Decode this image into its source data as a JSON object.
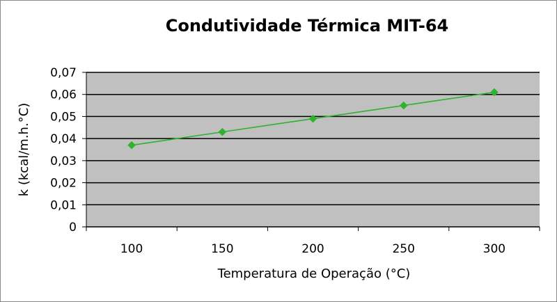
{
  "chart_data": {
    "type": "line",
    "title": "Condutividade Térmica MIT-64",
    "xlabel": "Temperatura de Operação (°C)",
    "ylabel": "k (kcal/m.h.°C)",
    "categories": [
      "100",
      "150",
      "200",
      "250",
      "300"
    ],
    "series": [
      {
        "values": [
          0.037,
          0.043,
          0.049,
          0.055,
          0.061
        ]
      }
    ],
    "ylim": [
      0,
      0.07
    ],
    "yticks": [
      0,
      0.01,
      0.02,
      0.03,
      0.04,
      0.05,
      0.06,
      0.07
    ],
    "ytick_labels": [
      "0",
      "0,01",
      "0,02",
      "0,03",
      "0,04",
      "0,05",
      "0,06",
      "0,07"
    ],
    "grid": true,
    "legend": "none",
    "colors": {
      "plot_background": "#c0c0c0",
      "gridline": "#000000",
      "series_line": "#2db32d",
      "marker": "#2db32d"
    }
  }
}
